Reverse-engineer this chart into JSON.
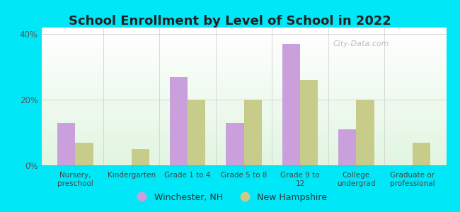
{
  "title": "School Enrollment by Level of School in 2022",
  "categories": [
    "Nursery,\npreschool",
    "Kindergarten",
    "Grade 1 to 4",
    "Grade 5 to 8",
    "Grade 9 to\n12",
    "College\nundergrad",
    "Graduate or\nprofessional"
  ],
  "winchester": [
    13,
    0,
    27,
    13,
    37,
    11,
    0
  ],
  "new_hampshire": [
    7,
    5,
    20,
    20,
    26,
    20,
    7
  ],
  "winchester_color": "#c9a0dc",
  "nh_color": "#c8cc8a",
  "background_outer": "#00e8f8",
  "ylim": [
    0,
    42
  ],
  "yticks": [
    0,
    20,
    40
  ],
  "ytick_labels": [
    "0%",
    "20%",
    "40%"
  ],
  "legend_winchester": "Winchester, NH",
  "legend_nh": "New Hampshire",
  "bar_width": 0.32,
  "title_fontsize": 13,
  "watermark": "City-Data.com"
}
